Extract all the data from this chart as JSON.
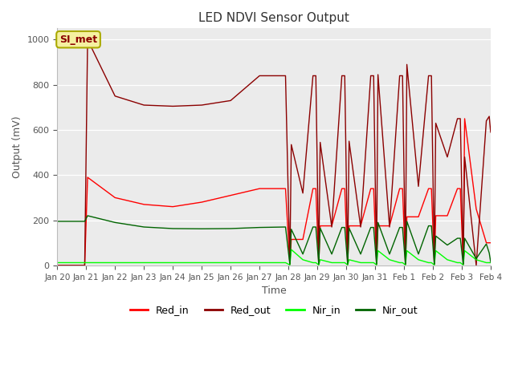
{
  "title": "LED NDVI Sensor Output",
  "xlabel": "Time",
  "ylabel": "Output (mV)",
  "ylim": [
    0,
    1050
  ],
  "xlim": [
    0,
    15
  ],
  "background_color": "#ebebeb",
  "annotation_text": "SI_met",
  "x_tick_labels": [
    "Jan 20",
    "Jan 21",
    "Jan 22",
    "Jan 23",
    "Jan 24",
    "Jan 25",
    "Jan 26",
    "Jan 27",
    "Jan 28",
    "Jan 29",
    "Jan 30",
    "Jan 31",
    "Feb 1",
    "Feb 2",
    "Feb 3",
    "Feb 4"
  ],
  "series": {
    "Red_in": {
      "color": "#ff0000",
      "x": [
        0,
        0.95,
        1.05,
        2,
        3,
        4,
        5,
        6,
        7,
        7.9,
        8.05,
        8.05,
        8.1,
        8.5,
        8.85,
        8.95,
        9.05,
        9.05,
        9.1,
        9.5,
        9.85,
        9.95,
        10.05,
        10.05,
        10.1,
        10.5,
        10.85,
        10.95,
        11.05,
        11.05,
        11.1,
        11.5,
        11.85,
        11.95,
        12.05,
        12.05,
        12.1,
        12.5,
        12.85,
        12.95,
        13.05,
        13.05,
        13.1,
        13.5,
        13.85,
        13.95,
        14.05,
        14.05,
        14.1,
        14.5,
        14.85,
        14.95,
        15
      ],
      "y": [
        0,
        0,
        390,
        300,
        270,
        260,
        280,
        310,
        340,
        340,
        5,
        5,
        115,
        115,
        340,
        340,
        5,
        5,
        175,
        175,
        340,
        340,
        5,
        5,
        175,
        175,
        340,
        340,
        5,
        5,
        175,
        175,
        340,
        340,
        5,
        5,
        215,
        215,
        340,
        340,
        5,
        5,
        220,
        220,
        340,
        340,
        5,
        5,
        650,
        250,
        100,
        100,
        100
      ]
    },
    "Red_out": {
      "color": "#8b0000",
      "x": [
        0,
        0.95,
        1.05,
        2,
        3,
        4,
        5,
        6,
        7,
        7.9,
        8.05,
        8.1,
        8.5,
        8.85,
        8.95,
        9.05,
        9.1,
        9.5,
        9.85,
        9.95,
        10.05,
        10.1,
        10.5,
        10.85,
        10.95,
        11.05,
        11.1,
        11.5,
        11.85,
        11.95,
        12.05,
        12.1,
        12.5,
        12.85,
        12.95,
        13.05,
        13.1,
        13.5,
        13.85,
        13.95,
        14.05,
        14.1,
        14.5,
        14.85,
        14.95,
        15
      ],
      "y": [
        0,
        0,
        1000,
        750,
        710,
        705,
        710,
        730,
        840,
        840,
        5,
        535,
        320,
        840,
        840,
        5,
        545,
        170,
        840,
        840,
        5,
        550,
        170,
        840,
        840,
        5,
        845,
        170,
        840,
        840,
        5,
        890,
        350,
        840,
        840,
        5,
        630,
        480,
        650,
        650,
        5,
        480,
        0,
        640,
        660,
        590
      ]
    },
    "Nir_in": {
      "color": "#00ff00",
      "x": [
        0,
        7,
        7.9,
        8.05,
        8.1,
        8.5,
        8.85,
        8.95,
        9.05,
        9.1,
        9.5,
        9.85,
        9.95,
        10.05,
        10.1,
        10.5,
        10.85,
        10.95,
        11.05,
        11.1,
        11.5,
        11.85,
        11.95,
        12.05,
        12.1,
        12.5,
        12.85,
        12.95,
        13.05,
        13.1,
        13.5,
        13.85,
        13.95,
        14.05,
        14.1,
        14.5,
        14.85,
        14.95,
        15
      ],
      "y": [
        12,
        12,
        12,
        2,
        70,
        25,
        12,
        12,
        2,
        25,
        12,
        12,
        12,
        2,
        25,
        12,
        12,
        12,
        2,
        65,
        25,
        12,
        12,
        2,
        65,
        25,
        12,
        12,
        2,
        65,
        25,
        12,
        12,
        2,
        65,
        25,
        12,
        12,
        12
      ]
    },
    "Nir_out": {
      "color": "#006400",
      "x": [
        0,
        0.95,
        1.05,
        2,
        3,
        4,
        5,
        6,
        7,
        7.9,
        8.05,
        8.1,
        8.5,
        8.85,
        8.95,
        9.05,
        9.1,
        9.5,
        9.85,
        9.95,
        10.05,
        10.1,
        10.5,
        10.85,
        10.95,
        11.05,
        11.1,
        11.5,
        11.85,
        11.95,
        12.05,
        12.1,
        12.5,
        12.85,
        12.95,
        13.05,
        13.1,
        13.5,
        13.85,
        13.95,
        14.05,
        14.1,
        14.5,
        14.85,
        14.95,
        15
      ],
      "y": [
        195,
        195,
        220,
        190,
        170,
        163,
        162,
        163,
        168,
        170,
        5,
        160,
        50,
        170,
        170,
        5,
        165,
        50,
        168,
        168,
        5,
        165,
        50,
        168,
        168,
        5,
        190,
        50,
        168,
        168,
        5,
        195,
        50,
        175,
        175,
        5,
        130,
        90,
        120,
        120,
        5,
        120,
        30,
        95,
        55,
        15
      ]
    }
  },
  "legend": [
    {
      "label": "Red_in",
      "color": "#ff0000"
    },
    {
      "label": "Red_out",
      "color": "#8b0000"
    },
    {
      "label": "Nir_in",
      "color": "#00ff00"
    },
    {
      "label": "Nir_out",
      "color": "#006400"
    }
  ]
}
